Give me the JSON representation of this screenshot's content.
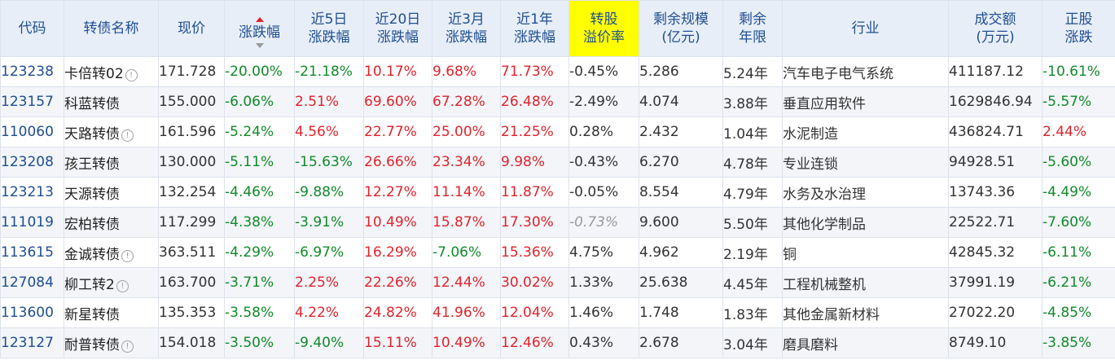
{
  "headers": {
    "code": "代码",
    "name": "转债名称",
    "price": "现价",
    "change_pct": "涨跌幅",
    "change_5d_1": "近5日",
    "change_5d_2": "涨跌幅",
    "change_20d_1": "近20日",
    "change_20d_2": "涨跌幅",
    "change_3m_1": "近3月",
    "change_3m_2": "涨跌幅",
    "change_1y_1": "近1年",
    "change_1y_2": "涨跌幅",
    "premium_1": "转股",
    "premium_2": "溢价率",
    "remaining_scale_1": "剩余规模",
    "remaining_scale_2": "(亿元)",
    "remaining_years_1": "剩余",
    "remaining_years_2": "年限",
    "industry": "行业",
    "turnover_1": "成交额",
    "turnover_2": "(万元)",
    "stock_change_1": "正股",
    "stock_change_2": "涨跌"
  },
  "sort": {
    "column": "change_pct",
    "direction": "up"
  },
  "colors": {
    "positive": "#e0232c",
    "negative": "#118a2a",
    "header_bg": "#e8eef8",
    "highlight": "#ffff00",
    "link": "#1f4e91"
  },
  "rows": [
    {
      "code": "123238",
      "name": "卡倍转02",
      "info": true,
      "price": "171.728",
      "change_pct": "-20.00%",
      "change_5d": "-21.18%",
      "change_20d": "10.17%",
      "change_3m": "9.68%",
      "change_1y": "71.73%",
      "premium": "-0.45%",
      "premium_style": "neutral",
      "remaining_scale": "5.286",
      "remaining_years": "5.24年",
      "industry": "汽车电子电气系统",
      "turnover": "411187.12",
      "stock_change": "-10.61%"
    },
    {
      "code": "123157",
      "name": "科蓝转债",
      "info": false,
      "price": "155.000",
      "change_pct": "-6.06%",
      "change_5d": "2.51%",
      "change_20d": "69.60%",
      "change_3m": "67.28%",
      "change_1y": "26.48%",
      "premium": "-2.49%",
      "premium_style": "neutral",
      "remaining_scale": "4.074",
      "remaining_years": "3.88年",
      "industry": "垂直应用软件",
      "turnover": "1629846.94",
      "stock_change": "-5.57%"
    },
    {
      "code": "110060",
      "name": "天路转债",
      "info": true,
      "price": "161.596",
      "change_pct": "-5.24%",
      "change_5d": "4.56%",
      "change_20d": "22.77%",
      "change_3m": "25.00%",
      "change_1y": "21.25%",
      "premium": "0.28%",
      "premium_style": "neutral",
      "remaining_scale": "2.432",
      "remaining_years": "1.04年",
      "industry": "水泥制造",
      "turnover": "436824.71",
      "stock_change": "2.44%"
    },
    {
      "code": "123208",
      "name": "孩王转债",
      "info": false,
      "price": "130.000",
      "change_pct": "-5.11%",
      "change_5d": "-15.63%",
      "change_20d": "26.66%",
      "change_3m": "23.34%",
      "change_1y": "9.98%",
      "premium": "-0.43%",
      "premium_style": "neutral",
      "remaining_scale": "6.270",
      "remaining_years": "4.78年",
      "industry": "专业连锁",
      "turnover": "94928.51",
      "stock_change": "-5.60%"
    },
    {
      "code": "123213",
      "name": "天源转债",
      "info": false,
      "price": "132.254",
      "change_pct": "-4.46%",
      "change_5d": "-9.88%",
      "change_20d": "12.27%",
      "change_3m": "11.14%",
      "change_1y": "11.87%",
      "premium": "-0.05%",
      "premium_style": "neutral",
      "remaining_scale": "8.554",
      "remaining_years": "4.79年",
      "industry": "水务及水治理",
      "turnover": "13743.36",
      "stock_change": "-4.49%"
    },
    {
      "code": "111019",
      "name": "宏柏转债",
      "info": false,
      "price": "117.299",
      "change_pct": "-4.38%",
      "change_5d": "-3.91%",
      "change_20d": "10.49%",
      "change_3m": "15.87%",
      "change_1y": "17.30%",
      "premium": "-0.73%",
      "premium_style": "muted",
      "remaining_scale": "9.600",
      "remaining_years": "5.50年",
      "industry": "其他化学制品",
      "turnover": "22522.71",
      "stock_change": "-7.60%"
    },
    {
      "code": "113615",
      "name": "金诚转债",
      "info": true,
      "price": "363.511",
      "change_pct": "-4.29%",
      "change_5d": "-6.97%",
      "change_20d": "16.29%",
      "change_3m": "-7.06%",
      "change_1y": "15.36%",
      "premium": "4.75%",
      "premium_style": "neutral",
      "remaining_scale": "4.962",
      "remaining_years": "2.19年",
      "industry": "铜",
      "turnover": "42845.32",
      "stock_change": "-6.11%"
    },
    {
      "code": "127084",
      "name": "柳工转2",
      "info": true,
      "price": "163.700",
      "change_pct": "-3.71%",
      "change_5d": "2.25%",
      "change_20d": "22.26%",
      "change_3m": "12.44%",
      "change_1y": "30.02%",
      "premium": "1.33%",
      "premium_style": "neutral",
      "remaining_scale": "25.638",
      "remaining_years": "4.45年",
      "industry": "工程机械整机",
      "turnover": "37991.19",
      "stock_change": "-6.21%"
    },
    {
      "code": "113600",
      "name": "新星转债",
      "info": false,
      "price": "135.353",
      "change_pct": "-3.58%",
      "change_5d": "4.22%",
      "change_20d": "24.82%",
      "change_3m": "41.96%",
      "change_1y": "12.04%",
      "premium": "1.46%",
      "premium_style": "neutral",
      "remaining_scale": "1.748",
      "remaining_years": "1.83年",
      "industry": "其他金属新材料",
      "turnover": "27022.20",
      "stock_change": "-4.85%"
    },
    {
      "code": "123127",
      "name": "耐普转债",
      "info": true,
      "price": "154.018",
      "change_pct": "-3.50%",
      "change_5d": "-9.40%",
      "change_20d": "15.11%",
      "change_3m": "10.49%",
      "change_1y": "12.46%",
      "premium": "0.43%",
      "premium_style": "neutral",
      "remaining_scale": "2.678",
      "remaining_years": "3.04年",
      "industry": "磨具磨料",
      "turnover": "8749.10",
      "stock_change": "-3.85%"
    }
  ]
}
